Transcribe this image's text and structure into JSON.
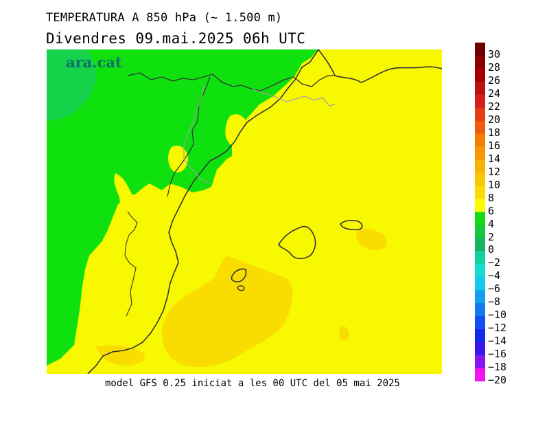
{
  "title": "TEMPERATURA A 850 hPa (~ 1.500 m)",
  "subtitle": "Divendres  09.mai.2025 06h UTC",
  "footer": "model GFS 0.25 iniciat a les 00 UTC del 05 mai 2025",
  "logo": "ara.cat",
  "legend": {
    "labels": [
      "30",
      "28",
      "26",
      "24",
      "22",
      "20",
      "18",
      "16",
      "14",
      "12",
      "10",
      "8",
      "6",
      "4",
      "2",
      "0",
      "-2",
      "-4",
      "-6",
      "-8",
      "-10",
      "-12",
      "-14",
      "-16",
      "-18",
      "-20"
    ],
    "colors": [
      "#6e0000",
      "#8c0000",
      "#a50000",
      "#bd1010",
      "#d21e1e",
      "#e63c14",
      "#f05a0a",
      "#f57d00",
      "#fa9600",
      "#fab400",
      "#fac800",
      "#fadc00",
      "#fafa00",
      "#14dc14",
      "#14c83c",
      "#14b464",
      "#14d2a0",
      "#14dcd2",
      "#14c8f0",
      "#14a0f0",
      "#1478f0",
      "#1450f0",
      "#1428f0",
      "#3c14f0",
      "#8c14f0",
      "#f014f0"
    ]
  },
  "map_colors": {
    "green": "#0fe10f",
    "green_dark": "#15d24a",
    "yellow": "#f8f800",
    "orange": "#f9dd00",
    "coast": "#333333",
    "border": "#a0a0a0"
  }
}
